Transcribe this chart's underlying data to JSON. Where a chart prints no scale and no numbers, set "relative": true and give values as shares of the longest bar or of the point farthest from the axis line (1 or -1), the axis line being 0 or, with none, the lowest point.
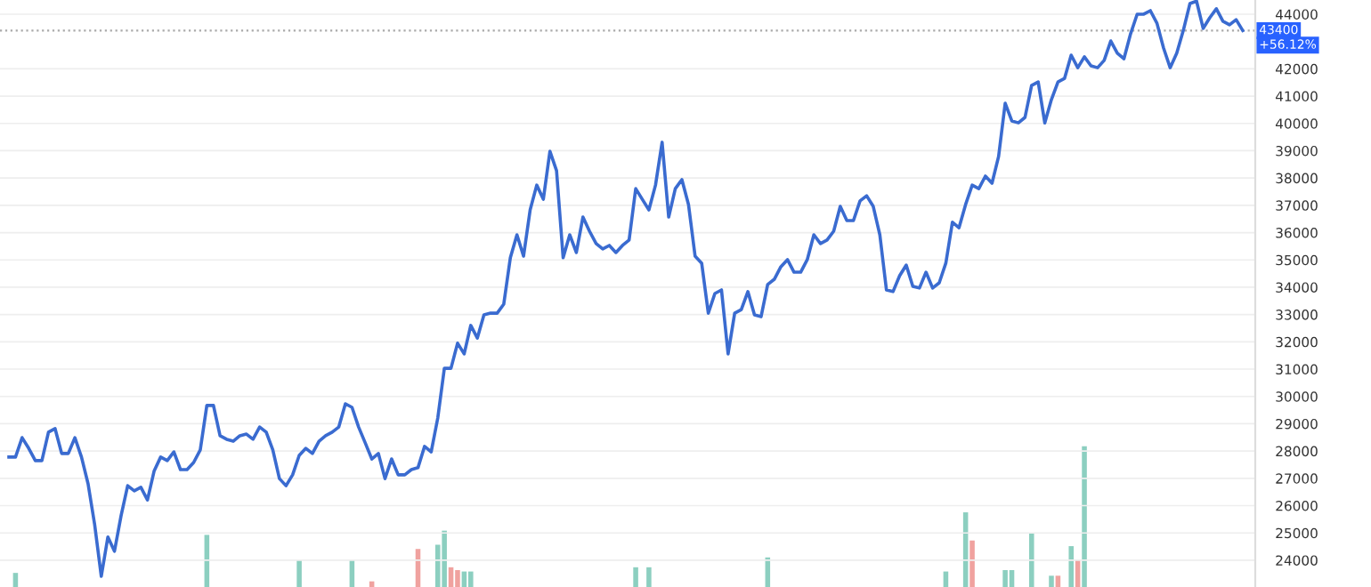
{
  "chart_data": [
    {
      "type": "line",
      "categories": [
        null,
        null,
        null,
        null,
        null,
        null,
        null,
        null,
        null,
        null,
        null,
        null,
        null,
        null,
        null,
        null,
        null,
        null,
        null,
        null,
        null,
        null,
        null,
        null,
        null,
        null,
        null,
        null,
        null,
        null,
        null,
        null,
        null,
        null,
        null,
        null,
        null,
        null,
        null,
        null,
        null,
        null,
        null,
        null,
        null,
        null,
        null,
        null,
        null,
        null,
        null,
        null,
        null,
        null,
        null,
        null,
        null,
        null,
        null,
        null,
        null,
        null,
        null,
        null,
        null,
        null,
        null,
        null,
        null,
        null,
        null,
        null,
        null,
        null,
        null,
        null,
        null,
        null,
        null,
        null,
        null,
        null,
        null,
        null,
        null,
        null,
        null,
        null,
        null,
        null,
        null,
        null,
        null,
        null,
        null,
        null,
        null,
        null,
        null,
        null,
        null,
        null,
        null,
        null,
        null,
        null,
        null,
        null,
        null,
        null,
        null,
        null,
        null,
        null,
        null,
        null,
        null,
        null,
        null,
        null,
        null,
        null,
        null,
        null,
        null,
        null,
        null,
        null,
        null,
        null,
        null,
        null,
        null,
        null,
        null,
        null,
        null,
        null,
        null,
        null,
        null,
        null,
        null,
        null,
        null,
        null,
        null,
        null,
        null,
        null,
        null,
        null,
        null,
        null,
        null,
        null,
        null,
        null,
        null,
        null,
        null,
        null,
        null,
        null,
        null,
        null,
        null,
        null,
        null,
        null,
        null,
        null,
        null,
        null,
        null,
        null,
        null,
        null,
        null,
        null,
        null,
        null,
        null,
        null,
        null,
        null,
        null,
        null
      ],
      "series": [
        {
          "color": "#3a6bd0",
          "values": [
            27780,
            27780,
            28490,
            28100,
            27650,
            27650,
            28690,
            28820,
            27910,
            27910,
            28490,
            27780,
            26800,
            25300,
            23410,
            24850,
            24330,
            25630,
            26730,
            26540,
            26670,
            26210,
            27260,
            27780,
            27650,
            27970,
            27320,
            27320,
            27580,
            28040,
            29670,
            29670,
            28560,
            28430,
            28360,
            28560,
            28620,
            28430,
            28880,
            28690,
            28040,
            26990,
            26730,
            27130,
            27840,
            28100,
            27910,
            28360,
            28560,
            28690,
            28880,
            29730,
            29600,
            28880,
            28300,
            27710,
            27910,
            26990,
            27710,
            27130,
            27130,
            27320,
            27390,
            28170,
            27970,
            29210,
            31030,
            31030,
            31950,
            31560,
            32600,
            32140,
            32990,
            33050,
            33050,
            33380,
            35080,
            35920,
            35140,
            36830,
            37740,
            37220,
            38980,
            38270,
            35080,
            35920,
            35270,
            36570,
            36050,
            35600,
            35400,
            35530,
            35270,
            35530,
            35730,
            37610,
            37220,
            36830,
            37740,
            39310,
            36570,
            37610,
            37940,
            37030,
            35140,
            34880,
            33050,
            33770,
            33900,
            31560,
            33050,
            33180,
            33840,
            32990,
            32920,
            34100,
            34290,
            34750,
            35010,
            34550,
            34550,
            35010,
            35920,
            35600,
            35730,
            36050,
            36960,
            36440,
            36440,
            37160,
            37350,
            36960,
            35920,
            33900,
            33840,
            34420,
            34810,
            34030,
            33970,
            34550,
            33970,
            34160,
            34880,
            36380,
            36180,
            37030,
            37740,
            37610,
            38070,
            37810,
            38790,
            40740,
            40090,
            40020,
            40220,
            41390,
            41520,
            40020,
            40870,
            41520,
            41650,
            42500,
            42040,
            42440,
            42110,
            42040,
            42310,
            43020,
            42570,
            42370,
            43280,
            44000,
            44000,
            44130,
            43670,
            42760,
            42040,
            42570,
            43410,
            44390,
            44480,
            43480,
            43870,
            44200,
            43740,
            43610,
            43800,
            43400
          ]
        }
      ],
      "ylim": [
        23020,
        44520
      ],
      "yticks": [
        24000,
        25000,
        26000,
        27000,
        28000,
        29000,
        30000,
        31000,
        32000,
        33000,
        34000,
        35000,
        36000,
        37000,
        38000,
        39000,
        40000,
        41000,
        42000,
        44000
      ],
      "grid": "y",
      "line_style": "solid",
      "marker": "none",
      "ref_lines": [
        {
          "axis": "y",
          "value": 43400,
          "label": "43400",
          "color": "#aaaaaa",
          "line_style": "dotted"
        }
      ],
      "annotations": [
        "+56.12%"
      ]
    },
    {
      "type": "bar",
      "relative": true,
      "categories": [
        null,
        null,
        null,
        null,
        null,
        null,
        null,
        null,
        null,
        null,
        null,
        null,
        null,
        null,
        null,
        null,
        null,
        null,
        null,
        null,
        null,
        null,
        null,
        null,
        null,
        null,
        null,
        null,
        null,
        null,
        null,
        null,
        null,
        null,
        null,
        null,
        null,
        null,
        null,
        null,
        null,
        null,
        null,
        null,
        null,
        null,
        null,
        null,
        null,
        null,
        null,
        null,
        null,
        null,
        null,
        null,
        null,
        null,
        null,
        null,
        null,
        null,
        null,
        null,
        null,
        null,
        null,
        null,
        null,
        null,
        null,
        null,
        null,
        null,
        null,
        null,
        null,
        null,
        null,
        null,
        null,
        null,
        null,
        null,
        null,
        null,
        null,
        null,
        null,
        null,
        null,
        null,
        null,
        null,
        null,
        null,
        null,
        null,
        null,
        null,
        null,
        null,
        null,
        null,
        null,
        null,
        null,
        null,
        null,
        null,
        null,
        null,
        null,
        null,
        null,
        null,
        null,
        null,
        null,
        null,
        null,
        null,
        null,
        null,
        null,
        null,
        null,
        null,
        null,
        null,
        null,
        null,
        null,
        null,
        null,
        null,
        null,
        null,
        null,
        null,
        null,
        null,
        null,
        null,
        null,
        null,
        null,
        null,
        null,
        null,
        null,
        null,
        null,
        null,
        null,
        null,
        null,
        null,
        null,
        null,
        null,
        null,
        null,
        null,
        null,
        null,
        null,
        null,
        null,
        null,
        null,
        null,
        null,
        null,
        null,
        null,
        null,
        null,
        null,
        null,
        null,
        null,
        null,
        null,
        null,
        null,
        null,
        null
      ],
      "series": [
        {
          "color": "#8ccfc0",
          "values": [
            null,
            0.1,
            null,
            null,
            null,
            null,
            null,
            null,
            null,
            null,
            null,
            null,
            null,
            null,
            null,
            null,
            null,
            null,
            null,
            null,
            null,
            null,
            null,
            null,
            null,
            null,
            null,
            null,
            null,
            null,
            0.37,
            null,
            null,
            null,
            null,
            null,
            null,
            null,
            null,
            null,
            null,
            null,
            null,
            null,
            0.19,
            null,
            null,
            null,
            null,
            null,
            null,
            null,
            0.19,
            null,
            null,
            null,
            null,
            null,
            null,
            null,
            null,
            null,
            null,
            null,
            null,
            0.3,
            0.4,
            null,
            null,
            0.11,
            0.11,
            null,
            null,
            null,
            null,
            null,
            null,
            null,
            null,
            null,
            null,
            null,
            null,
            null,
            null,
            null,
            null,
            null,
            null,
            null,
            null,
            null,
            null,
            null,
            null,
            0.14,
            null,
            0.14,
            null,
            null,
            null,
            null,
            null,
            null,
            null,
            null,
            null,
            null,
            null,
            null,
            null,
            null,
            null,
            null,
            null,
            0.21,
            null,
            null,
            null,
            null,
            null,
            null,
            null,
            null,
            null,
            null,
            null,
            null,
            null,
            null,
            null,
            null,
            null,
            null,
            null,
            null,
            null,
            null,
            null,
            null,
            null,
            null,
            0.11,
            null,
            null,
            0.53,
            null,
            null,
            null,
            null,
            null,
            0.12,
            0.12,
            null,
            null,
            0.38,
            null,
            null,
            0.08,
            null,
            null,
            0.29,
            null,
            1,
            null,
            null,
            null,
            null,
            null,
            null,
            null,
            null,
            null,
            null,
            null,
            null,
            null,
            null,
            null,
            null,
            null,
            null,
            null,
            null,
            null,
            null,
            null,
            null
          ]
        },
        {
          "color": "#f0a29f",
          "values": [
            null,
            null,
            null,
            null,
            null,
            null,
            null,
            null,
            null,
            null,
            null,
            null,
            null,
            null,
            null,
            null,
            null,
            null,
            null,
            null,
            null,
            null,
            null,
            null,
            null,
            null,
            null,
            null,
            null,
            null,
            null,
            null,
            null,
            null,
            null,
            null,
            null,
            null,
            null,
            null,
            null,
            null,
            null,
            null,
            null,
            null,
            null,
            null,
            null,
            null,
            null,
            null,
            null,
            null,
            null,
            0.04,
            null,
            null,
            null,
            null,
            null,
            null,
            0.27,
            null,
            null,
            null,
            null,
            0.14,
            0.12,
            null,
            null,
            null,
            null,
            null,
            null,
            null,
            null,
            null,
            null,
            null,
            null,
            null,
            null,
            null,
            null,
            null,
            null,
            null,
            null,
            null,
            null,
            null,
            null,
            null,
            null,
            null,
            null,
            null,
            null,
            null,
            null,
            null,
            null,
            null,
            null,
            null,
            null,
            null,
            null,
            null,
            null,
            null,
            null,
            null,
            null,
            null,
            null,
            null,
            null,
            null,
            null,
            null,
            null,
            null,
            null,
            null,
            null,
            null,
            null,
            null,
            null,
            null,
            null,
            null,
            null,
            null,
            null,
            null,
            null,
            null,
            null,
            null,
            null,
            null,
            null,
            null,
            0.33,
            null,
            null,
            null,
            null,
            null,
            null,
            null,
            null,
            null,
            null,
            null,
            null,
            0.08,
            null,
            null,
            0.19,
            null,
            null,
            null,
            null,
            null,
            null,
            null,
            null,
            null,
            null,
            null,
            null,
            null,
            null,
            null,
            null,
            null,
            null,
            null,
            null,
            null,
            null,
            null,
            null,
            null
          ]
        }
      ]
    }
  ]
}
